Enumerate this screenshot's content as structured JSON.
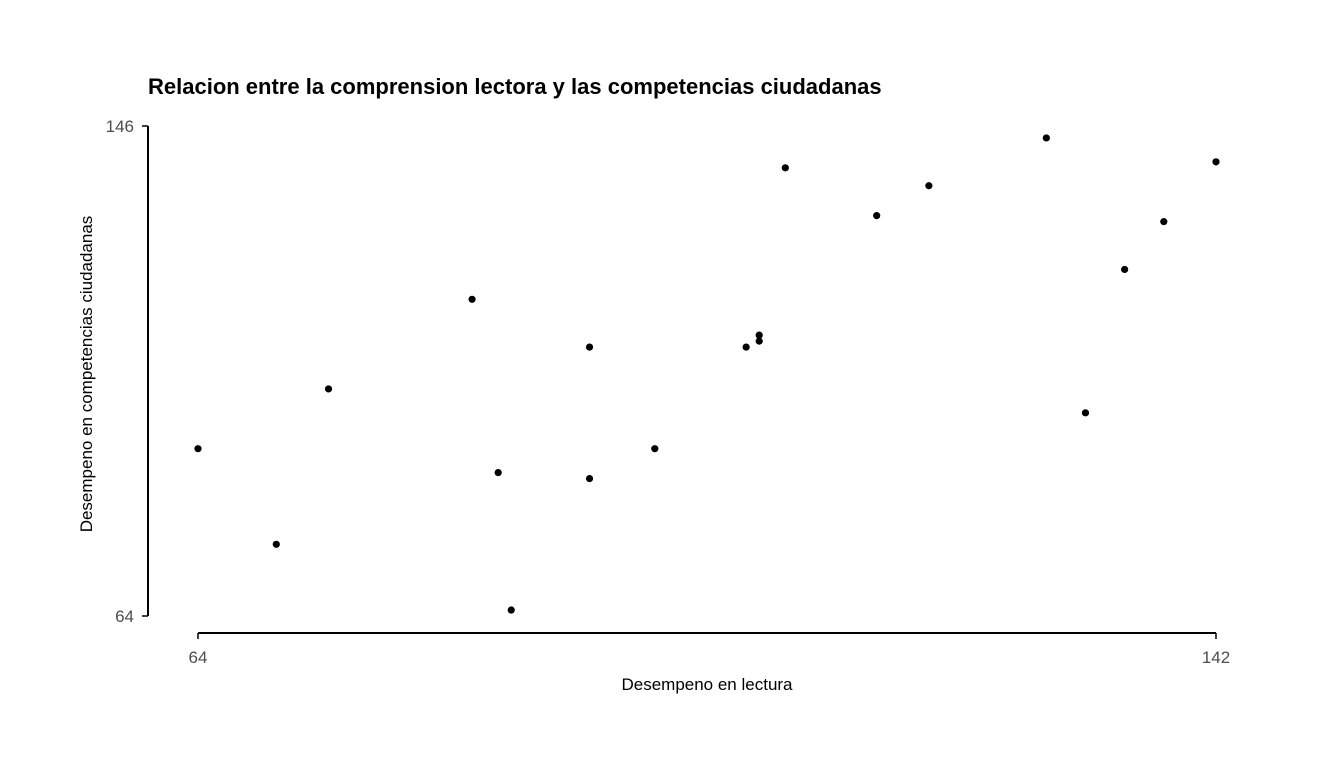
{
  "colors": {
    "background": "#ffffff",
    "points": "#000000",
    "axis": "#000000",
    "tick_text": "#4d4d4d"
  },
  "chart_data": {
    "type": "scatter",
    "title": "Relacion entre la comprension lectora y las competencias ciudadanas",
    "xlabel": "Desempeno en lectura",
    "ylabel": "Desempeno en competencias ciudadanas",
    "xlim": [
      64,
      142
    ],
    "ylim": [
      64,
      146
    ],
    "x_ticks": [
      64,
      142
    ],
    "y_ticks": [
      64,
      146
    ],
    "x_tick_labels": [
      "64",
      "142"
    ],
    "y_tick_labels": [
      "64",
      "146"
    ],
    "grid": false,
    "legend": "none",
    "points": [
      {
        "x": 64,
        "y": 92
      },
      {
        "x": 70,
        "y": 76
      },
      {
        "x": 74,
        "y": 102
      },
      {
        "x": 85,
        "y": 117
      },
      {
        "x": 87,
        "y": 88
      },
      {
        "x": 88,
        "y": 65
      },
      {
        "x": 94,
        "y": 109
      },
      {
        "x": 94,
        "y": 87
      },
      {
        "x": 99,
        "y": 92
      },
      {
        "x": 106,
        "y": 109
      },
      {
        "x": 107,
        "y": 110
      },
      {
        "x": 107,
        "y": 111
      },
      {
        "x": 109,
        "y": 139
      },
      {
        "x": 116,
        "y": 131
      },
      {
        "x": 120,
        "y": 136
      },
      {
        "x": 129,
        "y": 144
      },
      {
        "x": 132,
        "y": 98
      },
      {
        "x": 135,
        "y": 122
      },
      {
        "x": 138,
        "y": 130
      },
      {
        "x": 142,
        "y": 140
      }
    ]
  }
}
